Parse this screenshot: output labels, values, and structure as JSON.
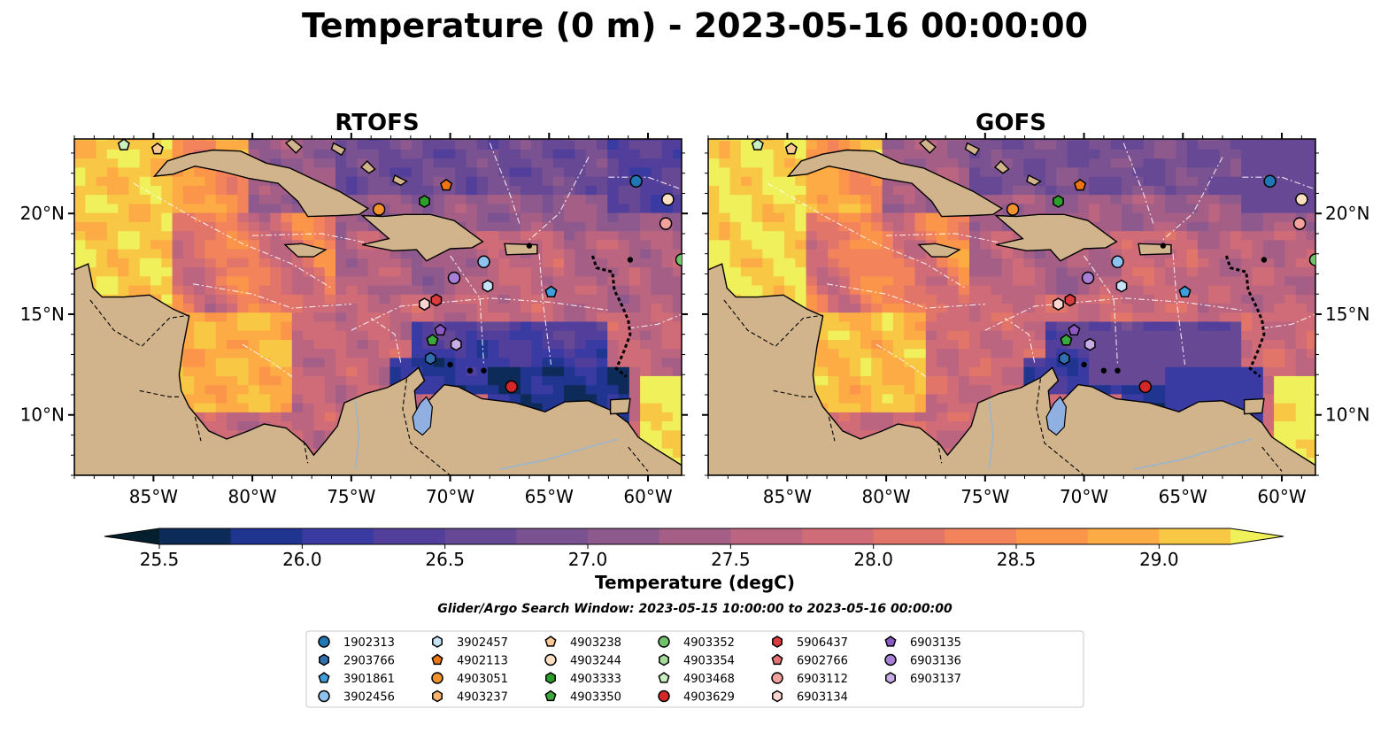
{
  "chart_data": {
    "type": "heatmap",
    "title": "Temperature (0 m) - 2023-05-16 00:00:00",
    "panels": [
      "RTOFS",
      "GOFS"
    ],
    "lon_range": [
      -89,
      -58.3
    ],
    "lat_range": [
      7,
      23.7
    ],
    "x_ticks": [
      -85,
      -80,
      -75,
      -70,
      -65,
      -60
    ],
    "x_tick_labels": [
      "85°W",
      "80°W",
      "75°W",
      "70°W",
      "65°W",
      "60°W"
    ],
    "y_ticks": [
      10,
      15,
      20
    ],
    "y_tick_labels": [
      "10°N",
      "15°N",
      "20°N"
    ],
    "colorbar": {
      "label": "Temperature (degC)",
      "min": 25.5,
      "max": 29.25,
      "step": 0.25,
      "ticks": [
        25.5,
        26.0,
        26.5,
        27.0,
        27.5,
        28.0,
        28.5,
        29.0
      ],
      "tick_labels": [
        "25.5",
        "26.0",
        "26.5",
        "27.0",
        "27.5",
        "28.0",
        "28.5",
        "29.0"
      ],
      "extend": "both",
      "colors": [
        "#04202f",
        "#0d2b58",
        "#1f3590",
        "#3a3aa3",
        "#523f9b",
        "#674895",
        "#7b5291",
        "#8e5a8d",
        "#a55f87",
        "#bb6580",
        "#d06c77",
        "#e2756a",
        "#f2835a",
        "#fb954a",
        "#fdab44",
        "#f8c844",
        "#eff05a"
      ]
    },
    "caption": "Glider/Argo Search Window: 2023-05-15 10:00:00 to 2023-05-16 00:00:00",
    "legend": [
      {
        "id": "1902313",
        "marker": "circle",
        "color": "#1f77b4"
      },
      {
        "id": "2903766",
        "marker": "hexagon",
        "color": "#2f6fae"
      },
      {
        "id": "3901861",
        "marker": "pentagon",
        "color": "#3e9fdd"
      },
      {
        "id": "3902456",
        "marker": "circle",
        "color": "#90c2ef"
      },
      {
        "id": "3902457",
        "marker": "hexagon",
        "color": "#c7e3f8"
      },
      {
        "id": "4902113",
        "marker": "pentagon",
        "color": "#ef7510"
      },
      {
        "id": "4903051",
        "marker": "circle",
        "color": "#f2922c"
      },
      {
        "id": "4903237",
        "marker": "hexagon",
        "color": "#f9b36a"
      },
      {
        "id": "4903238",
        "marker": "pentagon",
        "color": "#fcc894"
      },
      {
        "id": "4903244",
        "marker": "circle",
        "color": "#fde0c2"
      },
      {
        "id": "4903333",
        "marker": "hexagon",
        "color": "#2aa02b"
      },
      {
        "id": "4903350",
        "marker": "pentagon",
        "color": "#3aa83a"
      },
      {
        "id": "4903352",
        "marker": "circle",
        "color": "#6fc46b"
      },
      {
        "id": "4903354",
        "marker": "hexagon",
        "color": "#a5dc9c"
      },
      {
        "id": "4903468",
        "marker": "pentagon",
        "color": "#c9f0c0"
      },
      {
        "id": "4903629",
        "marker": "circle",
        "color": "#d62728"
      },
      {
        "id": "5906437",
        "marker": "hexagon",
        "color": "#dc3c3d"
      },
      {
        "id": "6902766",
        "marker": "pentagon",
        "color": "#e57373"
      },
      {
        "id": "6903112",
        "marker": "circle",
        "color": "#f2a19c"
      },
      {
        "id": "6903134",
        "marker": "hexagon",
        "color": "#fbd6d1"
      },
      {
        "id": "6903135",
        "marker": "pentagon",
        "color": "#8c59c4"
      },
      {
        "id": "6903136",
        "marker": "circle",
        "color": "#a77fd6"
      },
      {
        "id": "6903137",
        "marker": "hexagon",
        "color": "#c8ace6"
      }
    ],
    "floats": [
      {
        "id": "4903468",
        "lon": -86.5,
        "lat": 23.4
      },
      {
        "id": "4903238",
        "lon": -84.8,
        "lat": 23.2
      },
      {
        "id": "1902313",
        "lon": -60.6,
        "lat": 21.6
      },
      {
        "id": "4903244",
        "lon": -59.0,
        "lat": 20.7
      },
      {
        "id": "6903112",
        "lon": -59.1,
        "lat": 19.5
      },
      {
        "id": "4902113",
        "lon": -70.2,
        "lat": 21.4
      },
      {
        "id": "4903051",
        "lon": -73.6,
        "lat": 20.2
      },
      {
        "id": "4903333",
        "lon": -71.3,
        "lat": 20.6
      },
      {
        "id": "4903352",
        "lon": -58.3,
        "lat": 17.7
      },
      {
        "id": "3902456",
        "lon": -68.3,
        "lat": 17.6
      },
      {
        "id": "6903136",
        "lon": -69.8,
        "lat": 16.8
      },
      {
        "id": "3902457",
        "lon": -68.1,
        "lat": 16.4
      },
      {
        "id": "3901861",
        "lon": -64.9,
        "lat": 16.1
      },
      {
        "id": "6903134",
        "lon": -71.3,
        "lat": 15.5
      },
      {
        "id": "5906437",
        "lon": -70.7,
        "lat": 15.7
      },
      {
        "id": "6903135",
        "lon": -70.5,
        "lat": 14.2
      },
      {
        "id": "6903137",
        "lon": -69.7,
        "lat": 13.5
      },
      {
        "id": "4903350",
        "lon": -70.9,
        "lat": 13.7
      },
      {
        "id": "2903766",
        "lon": -71.0,
        "lat": 12.8
      },
      {
        "id": "4903629",
        "lon": -66.9,
        "lat": 11.4
      }
    ]
  }
}
